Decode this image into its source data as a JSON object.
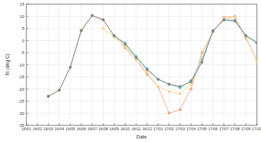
{
  "chart_data": {
    "type": "line",
    "x_label": "Date",
    "y_label": "Ts (deg C)",
    "categories": [
      "16/01",
      "16/02",
      "16/03",
      "16/04",
      "16/05",
      "16/06",
      "16/07",
      "16/08",
      "16/09",
      "16/10",
      "16/11",
      "16/12",
      "17/01",
      "17/02",
      "17/03",
      "17/04",
      "17/05",
      "17/06",
      "17/07",
      "17/08",
      "17/09",
      "17/10"
    ],
    "series": [
      {
        "color": "#f4a582",
        "marker": "circle",
        "values": [
          null,
          null,
          -23,
          -20.5,
          -11,
          4.3,
          10.3,
          8.7,
          1.8,
          -3,
          -8,
          -14,
          -19,
          -30,
          -28.5,
          -20,
          -5,
          3.5,
          9.5,
          10,
          1,
          -8
        ]
      },
      {
        "color": "#f6d58e",
        "marker": "circle",
        "values": [
          null,
          null,
          null,
          null,
          null,
          null,
          null,
          5,
          1.5,
          -2.5,
          -8,
          -13,
          -19,
          -21,
          -22,
          -18,
          -7,
          4,
          9,
          9.5,
          1.5,
          -8.5
        ]
      },
      {
        "color": "#74c7d4",
        "marker": "circle",
        "values": [
          null,
          null,
          null,
          null,
          null,
          null,
          null,
          null,
          2,
          -1,
          -6.5,
          -11.5,
          -16,
          -18,
          -19.5,
          -16.5,
          -8,
          4,
          8.5,
          8.5,
          2,
          -0.5
        ]
      },
      {
        "color": "#808080",
        "marker": "circle",
        "values": [
          null,
          null,
          -23,
          -20.5,
          -11,
          4,
          10.3,
          8.5,
          2,
          -1.5,
          -7,
          -12,
          -16,
          -18,
          -19,
          -17,
          -9,
          4,
          8.5,
          8,
          2,
          -1
        ]
      }
    ],
    "ylim": [
      -35,
      15
    ],
    "yticks": [
      -35,
      -30,
      -25,
      -20,
      -15,
      -10,
      -5,
      0,
      5,
      10,
      15
    ],
    "grid": true
  }
}
